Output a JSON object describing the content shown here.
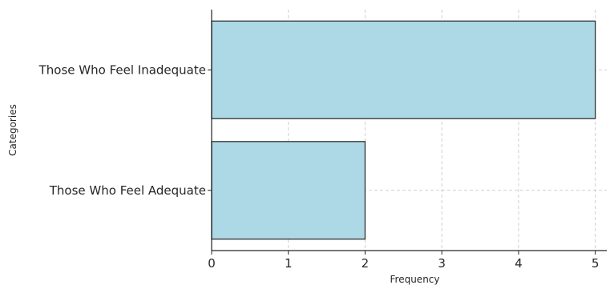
{
  "chart_data": {
    "type": "bar",
    "orientation": "horizontal",
    "categories": [
      "Those Who Feel Adequate",
      "Those Who Feel Inadequate"
    ],
    "values": [
      2,
      5
    ],
    "title": "",
    "xlabel": "Frequency",
    "ylabel": "Categories",
    "xlim": [
      0,
      5.15
    ],
    "xticks": [
      0,
      1,
      2,
      3,
      4,
      5
    ],
    "grid": true,
    "legend": "none",
    "bar_color": "#add8e6",
    "edge_color": "#333333",
    "grid_color": "#cfcfcf"
  }
}
